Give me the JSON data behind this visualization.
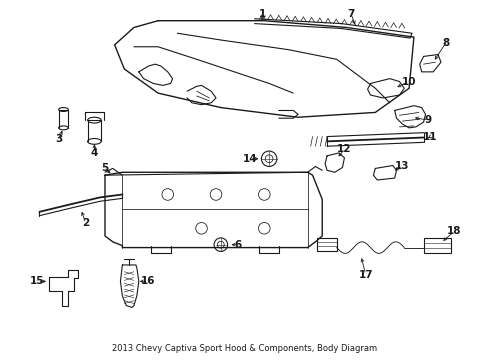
{
  "title": "2013 Chevy Captiva Sport Hood & Components, Body Diagram",
  "background_color": "#ffffff",
  "line_color": "#1a1a1a",
  "figsize": [
    4.89,
    3.6
  ],
  "dpi": 100,
  "font_size_label": 7.5,
  "font_size_title": 6.0
}
